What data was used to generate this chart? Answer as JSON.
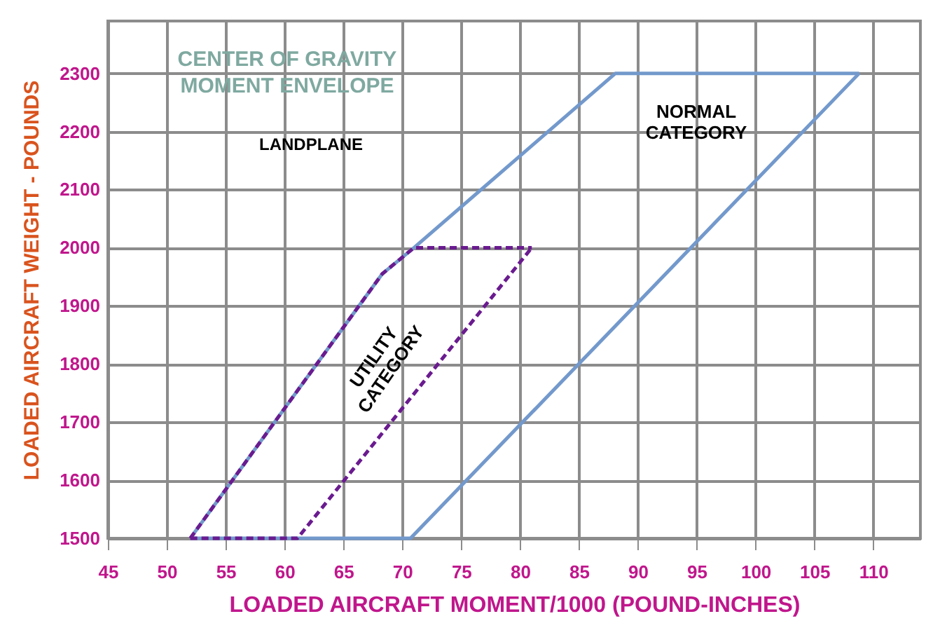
{
  "chart_data": {
    "type": "line",
    "title": "CENTER OF GRAVITY MOMENT ENVELOPE",
    "subtitle": "LANDPLANE",
    "xlabel": "LOADED AIRCRAFT MOMENT/1000 (POUND-INCHES)",
    "ylabel": "LOADED AIRCRAFT WEIGHT - POUNDS",
    "xlim": [
      45,
      114
    ],
    "ylim": [
      1500,
      2390
    ],
    "xticks": [
      45,
      50,
      55,
      60,
      65,
      70,
      75,
      80,
      85,
      90,
      95,
      100,
      105,
      110
    ],
    "yticks": [
      1500,
      1600,
      1700,
      1800,
      1900,
      2000,
      2100,
      2200,
      2300
    ],
    "grid": true,
    "marker": "none",
    "series": [
      {
        "name": "NORMAL CATEGORY",
        "color": "#7399cc",
        "line_style": "solid",
        "x": [
          52,
          68.3,
          71,
          88.1,
          108.8
        ],
        "values": [
          1500,
          1955,
          2000,
          2300,
          2300
        ]
      },
      {
        "color": "#7399cc",
        "line_style": "solid",
        "x": [
          52,
          70.7,
          108.8
        ],
        "values": [
          1500,
          1500,
          2300
        ]
      },
      {
        "name": "UTILITY CATEGORY",
        "color": "#6a1b8f",
        "line_style": "dashed",
        "x": [
          52,
          68.3,
          71,
          81
        ],
        "values": [
          1500,
          1955,
          2000,
          2000
        ]
      },
      {
        "color": "#6a1b8f",
        "line_style": "dashed",
        "x": [
          52,
          61.1,
          81
        ],
        "values": [
          1500,
          1500,
          2000
        ]
      }
    ]
  }
}
